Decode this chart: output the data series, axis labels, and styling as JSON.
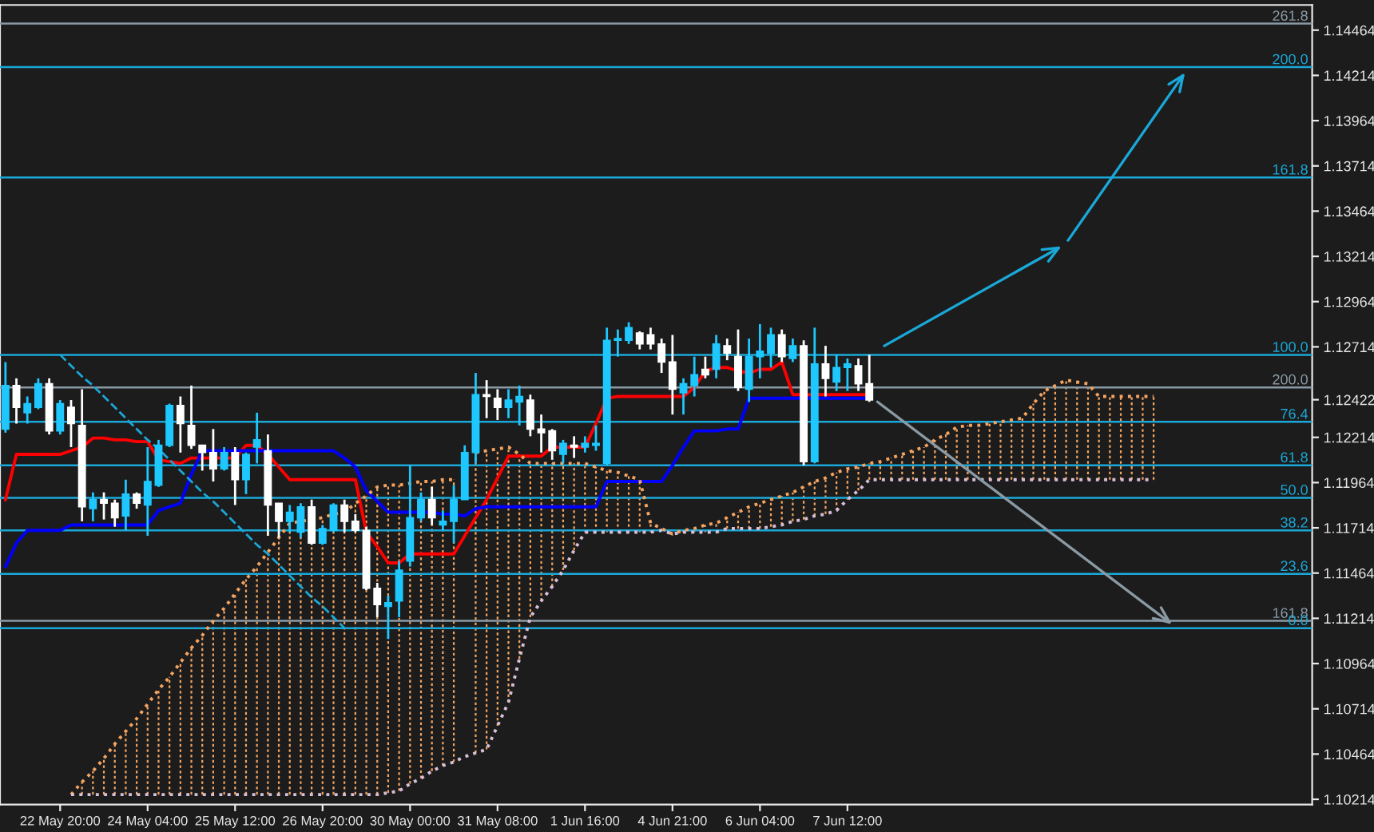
{
  "chart_data": {
    "type": "candlestick",
    "categories": [
      null,
      null,
      null,
      null,
      null,
      "22 May 20:00",
      null,
      null,
      null,
      null,
      null,
      null,
      null,
      "24 May 04:00",
      null,
      null,
      null,
      null,
      null,
      null,
      null,
      "25 May 12:00",
      null,
      null,
      null,
      null,
      null,
      null,
      null,
      "26 May 20:00",
      null,
      null,
      null,
      null,
      null,
      null,
      null,
      "30 May 00:00",
      null,
      null,
      null,
      null,
      null,
      null,
      null,
      "31 May 08:00",
      null,
      null,
      null,
      null,
      null,
      null,
      null,
      "1 Jun 16:00",
      null,
      null,
      null,
      null,
      null,
      null,
      null,
      "4 Jun 21:00",
      null,
      null,
      null,
      null,
      null,
      null,
      null,
      "6 Jun 04:00",
      null,
      null,
      null,
      null,
      null,
      null,
      null,
      "7 Jun 12:00",
      null,
      null,
      null,
      null,
      null,
      null,
      null,
      null,
      null,
      null,
      null,
      null,
      null,
      null,
      null,
      null,
      null,
      null,
      null,
      null,
      null,
      null,
      null,
      null,
      null,
      null,
      null,
      null,
      null,
      null,
      null,
      null,
      null,
      null,
      null,
      null,
      null,
      null,
      null,
      null,
      null,
      null
    ],
    "ohlc": [
      [
        1.1226,
        1.1263,
        1.1224,
        1.125
      ],
      [
        1.125,
        1.1254,
        1.1229,
        1.1238
      ],
      [
        1.1235,
        1.1244,
        1.1229,
        1.124
      ],
      [
        1.1238,
        1.1254,
        1.1237,
        1.1251
      ],
      [
        1.1251,
        1.1254,
        1.1223,
        1.1225
      ],
      [
        1.1225,
        1.1242,
        1.1223,
        1.124
      ],
      [
        1.1238,
        1.1242,
        1.1216,
        1.1229
      ],
      [
        1.1228,
        1.1248,
        1.1175,
        1.1183
      ],
      [
        1.1182,
        1.1191,
        1.1175,
        1.1187
      ],
      [
        1.1187,
        1.1191,
        1.1176,
        1.1185
      ],
      [
        1.1185,
        1.1187,
        1.1172,
        1.1177
      ],
      [
        1.1178,
        1.1198,
        1.117,
        1.119
      ],
      [
        1.119,
        1.1191,
        1.1182,
        1.1185
      ],
      [
        1.1184,
        1.1216,
        1.1167,
        1.1197
      ],
      [
        1.1195,
        1.122,
        1.1194,
        1.1217
      ],
      [
        1.1217,
        1.124,
        1.1216,
        1.1239
      ],
      [
        1.1239,
        1.1244,
        1.1213,
        1.1229
      ],
      [
        1.1228,
        1.125,
        1.1215,
        1.1217
      ],
      [
        1.1217,
        1.1217,
        1.1203,
        1.1213
      ],
      [
        1.1213,
        1.1226,
        1.1197,
        1.1204
      ],
      [
        1.1204,
        1.1216,
        1.1203,
        1.1213
      ],
      [
        1.1213,
        1.1216,
        1.1184,
        1.1198
      ],
      [
        1.1198,
        1.1213,
        1.119,
        1.1212
      ],
      [
        1.1216,
        1.1235,
        1.1207,
        1.122
      ],
      [
        1.1214,
        1.1223,
        1.1167,
        1.1184
      ],
      [
        1.1185,
        1.1185,
        1.1166,
        1.1175
      ],
      [
        1.1175,
        1.1184,
        1.1169,
        1.118
      ],
      [
        1.1169,
        1.1185,
        1.1166,
        1.1183
      ],
      [
        1.1183,
        1.1187,
        1.1162,
        1.1163
      ],
      [
        1.1163,
        1.1173,
        1.1162,
        1.1171
      ],
      [
        1.117,
        1.1185,
        1.1169,
        1.1184
      ],
      [
        1.1184,
        1.1187,
        1.1169,
        1.1175
      ],
      [
        1.1175,
        1.1179,
        1.1169,
        1.117
      ],
      [
        1.117,
        1.1172,
        1.1137,
        1.1138
      ],
      [
        1.1138,
        1.1141,
        1.1122,
        1.1129
      ],
      [
        1.1128,
        1.1134,
        1.111,
        1.113
      ],
      [
        1.1131,
        1.1153,
        1.1122,
        1.1148
      ],
      [
        1.1153,
        1.1206,
        1.115,
        1.1177
      ],
      [
        1.1177,
        1.1191,
        1.1175,
        1.1187
      ],
      [
        1.1187,
        1.1194,
        1.1173,
        1.1177
      ],
      [
        1.1173,
        1.1181,
        1.117,
        1.1175
      ],
      [
        1.1175,
        1.1195,
        1.1163,
        1.1187
      ],
      [
        1.1187,
        1.1217,
        1.1187,
        1.1213
      ],
      [
        1.1213,
        1.1257,
        1.1207,
        1.1245
      ],
      [
        1.1245,
        1.1253,
        1.1232,
        1.1244
      ],
      [
        1.1243,
        1.1248,
        1.1231,
        1.1238
      ],
      [
        1.1238,
        1.1248,
        1.1232,
        1.1242
      ],
      [
        1.1241,
        1.125,
        1.1228,
        1.1244
      ],
      [
        1.1242,
        1.1245,
        1.1222,
        1.1226
      ],
      [
        1.1226,
        1.1234,
        1.1213,
        1.1224
      ],
      [
        1.1225,
        1.1226,
        1.1209,
        1.1214
      ],
      [
        1.1212,
        1.122,
        1.1207,
        1.1218
      ],
      [
        1.1217,
        1.1222,
        1.121,
        1.1216
      ],
      [
        1.1216,
        1.1222,
        1.1213,
        1.1218
      ],
      [
        1.1217,
        1.1228,
        1.1214,
        1.1218
      ],
      [
        1.1207,
        1.1282,
        1.1206,
        1.1275
      ],
      [
        1.1275,
        1.1281,
        1.1266,
        1.1276
      ],
      [
        1.1275,
        1.1285,
        1.1273,
        1.1282
      ],
      [
        1.1279,
        1.128,
        1.127,
        1.1273
      ],
      [
        1.1278,
        1.1282,
        1.127,
        1.1273
      ],
      [
        1.1273,
        1.1276,
        1.1257,
        1.1263
      ],
      [
        1.1263,
        1.1278,
        1.1234,
        1.1248
      ],
      [
        1.1246,
        1.1254,
        1.1234,
        1.1251
      ],
      [
        1.125,
        1.1266,
        1.1244,
        1.1256
      ],
      [
        1.1259,
        1.1266,
        1.1254,
        1.1256
      ],
      [
        1.1259,
        1.1278,
        1.1254,
        1.1273
      ],
      [
        1.1272,
        1.1276,
        1.1264,
        1.1268
      ],
      [
        1.1266,
        1.1281,
        1.1247,
        1.1249
      ],
      [
        1.1248,
        1.1276,
        1.1241,
        1.1266
      ],
      [
        1.1266,
        1.1284,
        1.1254,
        1.1269
      ],
      [
        1.1268,
        1.1282,
        1.126,
        1.1278
      ],
      [
        1.1278,
        1.1281,
        1.1263,
        1.1266
      ],
      [
        1.1265,
        1.1276,
        1.1263,
        1.1272
      ],
      [
        1.1272,
        1.1275,
        1.1206,
        1.1208
      ],
      [
        1.1208,
        1.1282,
        1.1207,
        1.1262
      ],
      [
        1.1262,
        1.1272,
        1.1244,
        1.1254
      ],
      [
        1.1252,
        1.1267,
        1.1247,
        1.126
      ],
      [
        1.126,
        1.1265,
        1.1247,
        1.1262
      ],
      [
        1.1261,
        1.1265,
        1.1247,
        1.1251
      ],
      [
        1.1251,
        1.1267,
        1.1241,
        1.1242
      ],
      null,
      null,
      null,
      null,
      null,
      null,
      null,
      null,
      null,
      null,
      null,
      null,
      null,
      null,
      null,
      null,
      null,
      null,
      null,
      null,
      null,
      null,
      null,
      null,
      null,
      null,
      null,
      null,
      null,
      null,
      null,
      null,
      null,
      null,
      null,
      null,
      null,
      null,
      null,
      null
    ],
    "colors": [
      "#1ec8ff",
      "#ffffff",
      "#1ec8ff",
      "#1ec8ff",
      "#ffffff",
      "#1ec8ff",
      "#ffffff",
      "#ffffff",
      "#1ec8ff",
      "#ffffff",
      "#ffffff",
      "#1ec8ff",
      "#ffffff",
      "#1ec8ff",
      "#1ec8ff",
      "#1ec8ff",
      "#ffffff",
      "#ffffff",
      "#ffffff",
      "#ffffff",
      "#1ec8ff",
      "#ffffff",
      "#1ec8ff",
      "#1ec8ff",
      "#ffffff",
      "#ffffff",
      "#1ec8ff",
      "#1ec8ff",
      "#ffffff",
      "#1ec8ff",
      "#1ec8ff",
      "#ffffff",
      "#ffffff",
      "#ffffff",
      "#ffffff",
      "#1ec8ff",
      "#1ec8ff",
      "#1ec8ff",
      "#1ec8ff",
      "#ffffff",
      "#1ec8ff",
      "#1ec8ff",
      "#1ec8ff",
      "#1ec8ff",
      "#ffffff",
      "#ffffff",
      "#1ec8ff",
      "#1ec8ff",
      "#ffffff",
      "#ffffff",
      "#ffffff",
      "#1ec8ff",
      "#ffffff",
      "#1ec8ff",
      "#1ec8ff",
      "#1ec8ff",
      "#1ec8ff",
      "#1ec8ff",
      "#ffffff",
      "#ffffff",
      "#ffffff",
      "#ffffff",
      "#1ec8ff",
      "#1ec8ff",
      "#ffffff",
      "#1ec8ff",
      "#ffffff",
      "#ffffff",
      "#1ec8ff",
      "#1ec8ff",
      "#1ec8ff",
      "#ffffff",
      "#1ec8ff",
      "#ffffff",
      "#1ec8ff",
      "#ffffff",
      "#1ec8ff",
      "#1ec8ff",
      "#ffffff",
      "#ffffff",
      null,
      null,
      null,
      null,
      null,
      null,
      null,
      null,
      null,
      null,
      null,
      null,
      null,
      null,
      null,
      null,
      null,
      null,
      null,
      null,
      null,
      null,
      null,
      null,
      null,
      null,
      null,
      null,
      null,
      null,
      null,
      null,
      null,
      null,
      null,
      null,
      null,
      null,
      null,
      null
    ],
    "series": [
      {
        "type": "line",
        "color": "#ff0000",
        "values": [
          1.1187,
          1.1212,
          1.1212,
          1.1212,
          1.1212,
          1.1212,
          1.1214,
          1.1216,
          1.1221,
          1.1221,
          1.122,
          1.122,
          1.1219,
          1.1219,
          1.1209,
          1.1208,
          1.1207,
          1.121,
          1.121,
          1.121,
          1.121,
          1.121,
          1.1217,
          1.1217,
          1.1212,
          1.1205,
          1.1198,
          1.1198,
          1.1198,
          1.1198,
          1.1198,
          1.1198,
          1.1198,
          1.1169,
          1.1161,
          1.1152,
          1.1152,
          1.1157,
          1.1157,
          1.1157,
          1.1157,
          1.1157,
          1.1167,
          1.1177,
          1.1187,
          1.1199,
          1.1211,
          1.1211,
          1.1211,
          1.1211,
          1.1216,
          1.1216,
          1.1216,
          1.1216,
          1.1229,
          1.1243,
          1.1244,
          1.1244,
          1.1244,
          1.1244,
          1.1244,
          1.1244,
          1.1244,
          1.1249,
          1.1258,
          1.126,
          1.126,
          1.1258,
          1.1257,
          1.1259,
          1.1259,
          1.1263,
          1.1245,
          1.1245,
          1.1245,
          1.1245,
          1.1245,
          1.1245,
          1.1245,
          1.1245,
          null,
          null,
          null,
          null,
          null,
          null,
          null,
          null,
          null,
          null,
          null,
          null,
          null,
          null,
          null,
          null,
          null,
          null,
          null,
          null,
          null,
          null,
          null,
          null,
          null,
          null,
          null,
          null,
          null,
          null,
          null,
          null,
          null,
          null,
          null,
          null,
          null,
          null,
          null,
          null
        ]
      },
      {
        "type": "line",
        "color": "#0000ff",
        "values": [
          1.115,
          1.1163,
          1.117,
          1.117,
          1.117,
          1.117,
          1.1173,
          1.1173,
          1.1173,
          1.1173,
          1.1173,
          1.1173,
          1.1173,
          1.1173,
          1.1181,
          1.1183,
          1.1185,
          1.1201,
          1.1214,
          1.1214,
          1.1214,
          1.1214,
          1.1214,
          1.1214,
          1.1214,
          1.1214,
          1.1214,
          1.1214,
          1.1214,
          1.1214,
          1.1214,
          1.121,
          1.1205,
          1.1192,
          1.1186,
          1.118,
          1.118,
          1.118,
          1.118,
          1.118,
          1.1179,
          1.1179,
          1.1178,
          1.1182,
          1.1183,
          1.1183,
          1.1183,
          1.1183,
          1.1183,
          1.1183,
          1.1183,
          1.1183,
          1.1183,
          1.1183,
          1.1183,
          1.1197,
          1.1197,
          1.1197,
          1.1197,
          1.1197,
          1.1197,
          1.1206,
          1.1216,
          1.1225,
          1.1225,
          1.1225,
          1.1226,
          1.1226,
          1.1243,
          1.1243,
          1.1243,
          1.1243,
          1.1243,
          1.1243,
          1.1243,
          1.1243,
          1.1243,
          1.1243,
          1.1243,
          1.1243,
          null,
          null,
          null,
          null,
          null,
          null,
          null,
          null,
          null,
          null,
          null,
          null,
          null,
          null,
          null,
          null,
          null,
          null,
          null,
          null,
          null,
          null,
          null,
          null,
          null,
          null,
          null,
          null,
          null,
          null,
          null,
          null,
          null,
          null,
          null,
          null,
          null,
          null,
          null,
          null
        ]
      },
      {
        "type": "line",
        "line_style": "dotted",
        "color": "#f4a460",
        "values": [
          null,
          null,
          null,
          null,
          null,
          null,
          1.1024,
          1.1031,
          1.1037,
          1.1044,
          1.1052,
          1.1059,
          1.1066,
          1.1074,
          1.1082,
          1.1089,
          1.1097,
          1.1105,
          1.1112,
          1.112,
          1.1127,
          1.1135,
          1.1143,
          1.115,
          1.1158,
          1.1166,
          1.1174,
          1.1175,
          1.1176,
          1.1177,
          1.1179,
          1.118,
          1.1185,
          1.1189,
          1.1194,
          1.1195,
          1.1195,
          1.1196,
          1.1197,
          1.1197,
          1.1198,
          1.1198,
          null,
          1.1213,
          1.1214,
          1.1215,
          1.1216,
          1.1212,
          1.1207,
          1.1207,
          1.1207,
          1.1207,
          1.1207,
          1.1207,
          1.1205,
          1.1203,
          1.1202,
          1.12,
          1.1198,
          1.1174,
          1.1171,
          1.1168,
          1.117,
          1.1171,
          1.1173,
          1.1174,
          1.1177,
          1.118,
          1.1183,
          1.1185,
          1.1187,
          1.1189,
          1.1191,
          1.1194,
          1.1197,
          1.1199,
          1.1202,
          1.1204,
          1.1205,
          1.1207,
          1.1208,
          1.121,
          1.1212,
          1.1214,
          1.1216,
          1.122,
          1.1223,
          1.1227,
          1.1228,
          1.1228,
          1.1229,
          1.123,
          1.1231,
          1.1232,
          1.124,
          1.1247,
          1.125,
          1.1253,
          1.1252,
          1.1251,
          1.1244,
          1.1244,
          1.1244,
          1.1244,
          1.1244,
          1.1244,
          null,
          null,
          null,
          null,
          null,
          null,
          null,
          null,
          null,
          null,
          null,
          null,
          null,
          null
        ]
      },
      {
        "type": "line",
        "line_style": "dotted",
        "color": "#d8bfd8",
        "values": [
          null,
          null,
          null,
          null,
          null,
          null,
          1.1024,
          1.1024,
          1.1024,
          1.1024,
          1.1024,
          1.1024,
          1.1024,
          1.1024,
          1.1024,
          1.1024,
          1.1024,
          1.1024,
          1.1024,
          1.1024,
          1.1024,
          1.1024,
          1.1024,
          1.1024,
          1.1024,
          1.1024,
          1.1024,
          1.1024,
          1.1024,
          1.1024,
          1.1024,
          1.1024,
          1.1024,
          1.1024,
          1.1024,
          1.1025,
          1.1026,
          1.103,
          1.1033,
          1.1037,
          1.104,
          1.1042,
          1.1045,
          1.1047,
          1.1049,
          1.1062,
          1.1075,
          1.1099,
          1.1122,
          1.1131,
          1.1139,
          1.1148,
          1.1159,
          1.1169,
          1.1169,
          1.1169,
          1.1169,
          1.1169,
          1.1169,
          1.1169,
          1.117,
          1.1168,
          1.1169,
          1.1169,
          1.1169,
          1.1169,
          1.1171,
          1.1171,
          1.1171,
          1.1171,
          1.1172,
          1.1173,
          1.1175,
          1.1176,
          1.1178,
          1.1179,
          1.1181,
          1.1187,
          1.1192,
          1.1198,
          1.1198,
          1.1198,
          1.1198,
          1.1198,
          1.1198,
          1.1198,
          1.1198,
          1.1198,
          1.1198,
          1.1198,
          1.1198,
          1.1198,
          1.1198,
          1.1198,
          1.1198,
          1.1198,
          1.1198,
          1.1198,
          1.1198,
          1.1198,
          1.1198,
          1.1198,
          1.1198,
          1.1198,
          1.1198,
          1.1198,
          null,
          null,
          null,
          null,
          null,
          null,
          null,
          null,
          null,
          null,
          null,
          null,
          null,
          null
        ]
      },
      {
        "type": "line",
        "line_style": "dashed",
        "color": "#1aa8d8",
        "values": [
          null,
          null,
          null,
          null,
          null,
          1.1267,
          1.1261,
          1.1255,
          1.125,
          1.1244,
          1.1238,
          1.1232,
          1.1226,
          1.122,
          1.1215,
          1.1209,
          1.1203,
          1.1197,
          1.1191,
          1.1186,
          1.118,
          1.1174,
          1.1168,
          1.1162,
          1.1157,
          1.1151,
          1.1145,
          1.1139,
          1.1133,
          1.1128,
          1.1122,
          1.1116,
          null,
          null,
          null,
          null,
          null,
          null,
          null,
          null,
          null,
          null,
          null,
          null,
          null,
          null,
          null,
          null,
          null,
          null,
          null,
          null,
          null,
          null,
          null,
          null,
          null,
          null,
          null,
          null,
          null,
          null,
          null,
          null,
          null,
          null,
          null,
          null,
          null,
          null,
          null,
          null,
          null,
          null,
          null,
          null,
          null,
          null,
          null,
          null,
          null,
          null,
          null,
          null,
          null,
          null,
          null,
          null,
          null,
          null,
          null,
          null,
          null,
          null,
          null,
          null,
          null,
          null,
          null,
          null,
          null,
          null,
          null,
          null,
          null,
          null,
          null,
          null,
          null,
          null,
          null,
          null,
          null,
          null,
          null,
          null,
          null,
          null,
          null,
          null
        ]
      }
    ],
    "ylim": [
      1.10185,
      1.14603
    ],
    "yticks": [
      1.14464,
      1.14214,
      1.13964,
      1.13714,
      1.13464,
      1.13214,
      1.12964,
      1.12714,
      1.12422,
      1.12214,
      1.11964,
      1.11714,
      1.11464,
      1.11214,
      1.10964,
      1.10714,
      1.10464,
      1.10214
    ],
    "ref_lines": [
      {
        "axis": "y",
        "value": 1.145,
        "color": "#8a9aa5"
      },
      {
        "axis": "y",
        "value": 1.1426,
        "color": "#1aa8d8"
      },
      {
        "axis": "y",
        "value": 1.1365,
        "color": "#1aa8d8"
      },
      {
        "axis": "y",
        "value": 1.1267,
        "color": "#1aa8d8"
      },
      {
        "axis": "y",
        "value": 1.1249,
        "color": "#8a9aa5"
      },
      {
        "axis": "y",
        "value": 1.123,
        "color": "#1aa8d8"
      },
      {
        "axis": "y",
        "value": 1.1206,
        "color": "#1aa8d8"
      },
      {
        "axis": "y",
        "value": 1.1188,
        "color": "#1aa8d8"
      },
      {
        "axis": "y",
        "value": 1.117,
        "color": "#1aa8d8"
      },
      {
        "axis": "y",
        "value": 1.1146,
        "color": "#1aa8d8"
      },
      {
        "axis": "y",
        "value": 1.112,
        "color": "#8a9aa5"
      },
      {
        "axis": "y",
        "value": 1.1116,
        "color": "#1aa8d8"
      }
    ],
    "annotations": [
      {
        "text": "261.8",
        "y": 1.145
      },
      {
        "text": "200.0",
        "y": 1.1426
      },
      {
        "text": "161.8",
        "y": 1.1365
      },
      {
        "text": "100.0",
        "y": 1.1267
      },
      {
        "text": "200.0",
        "y": 1.1249
      },
      {
        "text": "76.4",
        "y": 1.123
      },
      {
        "text": "61.8",
        "y": 1.1206
      },
      {
        "text": "50.0",
        "y": 1.1188
      },
      {
        "text": "38.2",
        "y": 1.117
      },
      {
        "text": "23.6",
        "y": 1.1146
      },
      {
        "text": "161.8",
        "y": 1.112
      },
      {
        "text": "0.0",
        "y": 1.1116
      }
    ]
  }
}
